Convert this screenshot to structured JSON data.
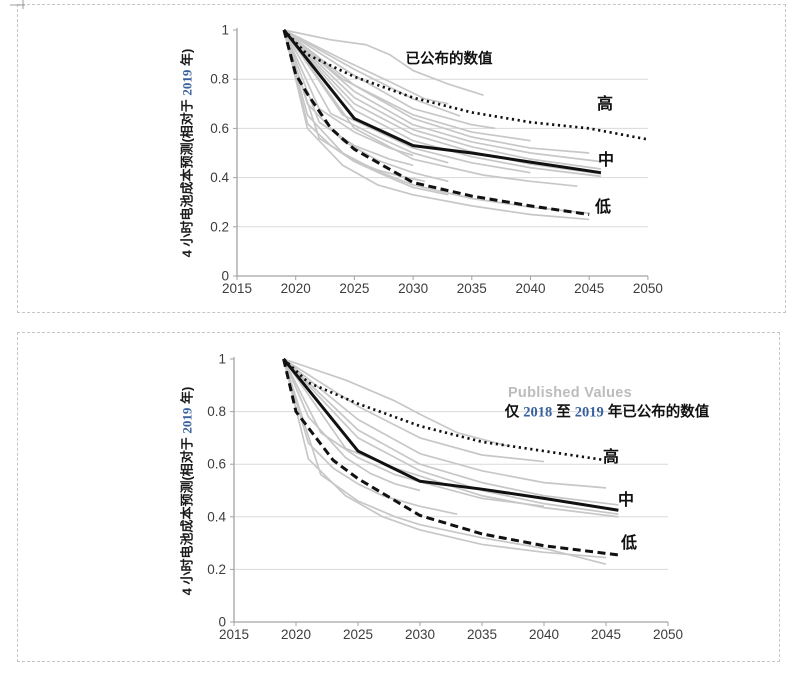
{
  "page": {
    "background": "#ffffff",
    "cell_border_color": "#c6c6c6"
  },
  "colors": {
    "main_line": "#111111",
    "background_lines": "#c7c7c7",
    "gridline": "#dadada",
    "axis": "#a3a3a3",
    "tick_text": "#3d3d3d",
    "annotation_text": "#111111",
    "watermark_text": "#bcbcbc",
    "accent_year_digits": "#38619e"
  },
  "labels": {
    "y_axis": {
      "pre": "4 小时电池成本预测(相对于 ",
      "year": "2019",
      "post": " 年)",
      "full": "4 小时电池成本预测(相对于 2019 年)"
    },
    "annotation2": {
      "p1": "仅 ",
      "year1": "2018",
      "p2": " 至 ",
      "year2": "2019",
      "p3": " 年已公布的数值"
    }
  },
  "chart_data": [
    {
      "type": "line",
      "annotation": "已公布的数值",
      "ylabel": "4 小时电池成本预测(相对于 2019 年)",
      "xlabel": "",
      "xlim": [
        2015,
        2050
      ],
      "ylim": [
        0,
        1
      ],
      "x_ticks": [
        2015,
        2020,
        2025,
        2030,
        2035,
        2040,
        2045,
        2050
      ],
      "y_ticks": [
        0,
        0.2,
        0.4,
        0.6,
        0.8,
        1
      ],
      "y_tick_labels": [
        "0",
        "0.2",
        "0.4",
        "0.6",
        "0.8",
        "1"
      ],
      "grid": "horizontal",
      "legend_position": "inline-right",
      "series": [
        {
          "name": "高",
          "style": "dotted",
          "points": [
            [
              2019,
              1
            ],
            [
              2021,
              0.9
            ],
            [
              2025,
              0.81
            ],
            [
              2030,
              0.725
            ],
            [
              2035,
              0.665
            ],
            [
              2040,
              0.625
            ],
            [
              2045,
              0.6
            ],
            [
              2050,
              0.555
            ]
          ]
        },
        {
          "name": "中",
          "style": "solid",
          "points": [
            [
              2019,
              1
            ],
            [
              2025,
              0.64
            ],
            [
              2030,
              0.53
            ],
            [
              2035,
              0.5
            ],
            [
              2040,
              0.463
            ],
            [
              2046,
              0.42
            ]
          ]
        },
        {
          "name": "低",
          "style": "dashed",
          "points": [
            [
              2019,
              1
            ],
            [
              2020,
              0.82
            ],
            [
              2021,
              0.74
            ],
            [
              2023,
              0.6
            ],
            [
              2025,
              0.515
            ],
            [
              2030,
              0.38
            ],
            [
              2035,
              0.325
            ],
            [
              2040,
              0.285
            ],
            [
              2045,
              0.25
            ]
          ]
        }
      ],
      "background_series": {
        "description": "individual published cost projections (gray)",
        "lines": [
          [
            [
              2019,
              1
            ],
            [
              2023,
              0.96
            ],
            [
              2026,
              0.94
            ],
            [
              2028,
              0.9
            ],
            [
              2030,
              0.835
            ],
            [
              2033,
              0.78
            ],
            [
              2036,
              0.735
            ]
          ],
          [
            [
              2019,
              1
            ],
            [
              2024,
              0.88
            ],
            [
              2028,
              0.79
            ],
            [
              2031,
              0.72
            ],
            [
              2033,
              0.7
            ]
          ],
          [
            [
              2019,
              1
            ],
            [
              2025,
              0.84
            ],
            [
              2030,
              0.72
            ],
            [
              2034,
              0.65
            ]
          ],
          [
            [
              2019,
              1
            ],
            [
              2025,
              0.815
            ],
            [
              2030,
              0.68
            ],
            [
              2035,
              0.615
            ],
            [
              2037,
              0.6
            ]
          ],
          [
            [
              2019,
              1
            ],
            [
              2024,
              0.8
            ],
            [
              2030,
              0.655
            ],
            [
              2035,
              0.585
            ],
            [
              2040,
              0.55
            ]
          ],
          [
            [
              2019,
              1
            ],
            [
              2025,
              0.775
            ],
            [
              2030,
              0.64
            ],
            [
              2035,
              0.565
            ],
            [
              2040,
              0.52
            ],
            [
              2045,
              0.5
            ]
          ],
          [
            [
              2019,
              1
            ],
            [
              2025,
              0.75
            ],
            [
              2030,
              0.615
            ],
            [
              2035,
              0.545
            ],
            [
              2040,
              0.5
            ],
            [
              2046,
              0.465
            ]
          ],
          [
            [
              2019,
              1
            ],
            [
              2025,
              0.725
            ],
            [
              2030,
              0.595
            ],
            [
              2035,
              0.525
            ],
            [
              2040,
              0.475
            ],
            [
              2046,
              0.435
            ]
          ],
          [
            [
              2019,
              1
            ],
            [
              2025,
              0.7
            ],
            [
              2030,
              0.575
            ],
            [
              2035,
              0.505
            ],
            [
              2040,
              0.455
            ],
            [
              2046,
              0.415
            ]
          ],
          [
            [
              2019,
              1
            ],
            [
              2025,
              0.675
            ],
            [
              2030,
              0.55
            ],
            [
              2035,
              0.485
            ],
            [
              2040,
              0.44
            ],
            [
              2046,
              0.405
            ]
          ],
          [
            [
              2019,
              1
            ],
            [
              2024,
              0.655
            ],
            [
              2030,
              0.52
            ],
            [
              2035,
              0.46
            ],
            [
              2040,
              0.42
            ]
          ],
          [
            [
              2019,
              1
            ],
            [
              2023,
              0.66
            ],
            [
              2027,
              0.565
            ],
            [
              2030,
              0.5
            ],
            [
              2033,
              0.46
            ]
          ],
          [
            [
              2019,
              1
            ],
            [
              2022,
              0.68
            ],
            [
              2025,
              0.585
            ],
            [
              2028,
              0.52
            ],
            [
              2030,
              0.49
            ]
          ],
          [
            [
              2019,
              1
            ],
            [
              2022,
              0.625
            ],
            [
              2025,
              0.53
            ],
            [
              2028,
              0.475
            ],
            [
              2030,
              0.45
            ]
          ],
          [
            [
              2019,
              1
            ],
            [
              2021,
              0.7
            ],
            [
              2024,
              0.55
            ],
            [
              2027,
              0.47
            ],
            [
              2030,
              0.42
            ],
            [
              2033,
              0.385
            ]
          ],
          [
            [
              2019,
              1
            ],
            [
              2021,
              0.655
            ],
            [
              2024,
              0.5
            ],
            [
              2027,
              0.425
            ],
            [
              2030,
              0.37
            ],
            [
              2035,
              0.315
            ],
            [
              2040,
              0.28
            ],
            [
              2045,
              0.255
            ]
          ],
          [
            [
              2019,
              1
            ],
            [
              2021,
              0.62
            ],
            [
              2023,
              0.53
            ],
            [
              2025,
              0.465
            ],
            [
              2028,
              0.4
            ],
            [
              2030,
              0.36
            ],
            [
              2033,
              0.33
            ]
          ],
          [
            [
              2019,
              1
            ],
            [
              2025,
              0.6
            ],
            [
              2030,
              0.475
            ],
            [
              2036,
              0.41
            ],
            [
              2040,
              0.385
            ],
            [
              2044,
              0.365
            ]
          ],
          [
            [
              2019,
              1
            ],
            [
              2022,
              0.56
            ],
            [
              2025,
              0.47
            ],
            [
              2027,
              0.43
            ],
            [
              2029,
              0.405
            ],
            [
              2031,
              0.385
            ]
          ],
          [
            [
              2019,
              1
            ],
            [
              2021,
              0.6
            ],
            [
              2024,
              0.45
            ],
            [
              2027,
              0.37
            ],
            [
              2030,
              0.33
            ],
            [
              2035,
              0.285
            ],
            [
              2040,
              0.25
            ],
            [
              2045,
              0.23
            ]
          ]
        ]
      }
    },
    {
      "type": "line",
      "annotation": "仅 2018 至 2019 年已公布的数值",
      "watermark": "Published Values",
      "ylabel": "4 小时电池成本预测(相对于 2019 年)",
      "xlabel": "",
      "xlim": [
        2015,
        2050
      ],
      "ylim": [
        0,
        1
      ],
      "x_ticks": [
        2015,
        2020,
        2025,
        2030,
        2035,
        2040,
        2045,
        2050
      ],
      "y_ticks": [
        0,
        0.2,
        0.4,
        0.6,
        0.8,
        1
      ],
      "y_tick_labels": [
        "0",
        "0.2",
        "0.4",
        "0.6",
        "0.8",
        "1"
      ],
      "grid": "horizontal",
      "legend_position": "inline-right",
      "series": [
        {
          "name": "高",
          "style": "dotted",
          "points": [
            [
              2019,
              1
            ],
            [
              2021,
              0.91
            ],
            [
              2025,
              0.83
            ],
            [
              2030,
              0.745
            ],
            [
              2035,
              0.685
            ],
            [
              2040,
              0.65
            ],
            [
              2045,
              0.615
            ]
          ]
        },
        {
          "name": "中",
          "style": "solid",
          "points": [
            [
              2019,
              1
            ],
            [
              2025,
              0.65
            ],
            [
              2030,
              0.535
            ],
            [
              2035,
              0.505
            ],
            [
              2040,
              0.47
            ],
            [
              2046,
              0.425
            ]
          ]
        },
        {
          "name": "低",
          "style": "dashed",
          "points": [
            [
              2019,
              1
            ],
            [
              2020,
              0.8
            ],
            [
              2023,
              0.615
            ],
            [
              2025,
              0.545
            ],
            [
              2030,
              0.405
            ],
            [
              2035,
              0.335
            ],
            [
              2040,
              0.29
            ],
            [
              2046,
              0.255
            ]
          ]
        }
      ],
      "background_series": {
        "description": "projections published 2018-2019 only (gray)",
        "lines": [
          [
            [
              2019,
              1
            ],
            [
              2024,
              0.92
            ],
            [
              2028,
              0.84
            ],
            [
              2030,
              0.79
            ],
            [
              2033,
              0.72
            ],
            [
              2037,
              0.67
            ]
          ],
          [
            [
              2019,
              1
            ],
            [
              2025,
              0.82
            ],
            [
              2030,
              0.7
            ],
            [
              2035,
              0.635
            ],
            [
              2040,
              0.61
            ]
          ],
          [
            [
              2019,
              1
            ],
            [
              2025,
              0.77
            ],
            [
              2030,
              0.64
            ],
            [
              2035,
              0.575
            ],
            [
              2040,
              0.53
            ],
            [
              2045,
              0.51
            ]
          ],
          [
            [
              2019,
              1
            ],
            [
              2025,
              0.73
            ],
            [
              2030,
              0.6
            ],
            [
              2035,
              0.53
            ],
            [
              2040,
              0.48
            ],
            [
              2046,
              0.445
            ]
          ],
          [
            [
              2019,
              1
            ],
            [
              2025,
              0.7
            ],
            [
              2030,
              0.575
            ],
            [
              2035,
              0.5
            ],
            [
              2040,
              0.45
            ],
            [
              2046,
              0.41
            ]
          ],
          [
            [
              2019,
              1
            ],
            [
              2024,
              0.66
            ],
            [
              2028,
              0.585
            ],
            [
              2030,
              0.555
            ],
            [
              2035,
              0.48
            ],
            [
              2040,
              0.435
            ],
            [
              2046,
              0.4
            ]
          ],
          [
            [
              2019,
              1
            ],
            [
              2022,
              0.72
            ],
            [
              2025,
              0.625
            ],
            [
              2028,
              0.56
            ],
            [
              2031,
              0.52
            ],
            [
              2035,
              0.47
            ],
            [
              2040,
              0.44
            ]
          ],
          [
            [
              2019,
              1
            ],
            [
              2021,
              0.78
            ],
            [
              2024,
              0.625
            ],
            [
              2026,
              0.565
            ],
            [
              2028,
              0.525
            ],
            [
              2030,
              0.5
            ]
          ],
          [
            [
              2019,
              1
            ],
            [
              2021,
              0.68
            ],
            [
              2023,
              0.585
            ],
            [
              2025,
              0.525
            ],
            [
              2027,
              0.48
            ],
            [
              2030,
              0.44
            ],
            [
              2033,
              0.41
            ]
          ],
          [
            [
              2019,
              1
            ],
            [
              2021,
              0.62
            ],
            [
              2024,
              0.48
            ],
            [
              2027,
              0.4
            ],
            [
              2030,
              0.35
            ],
            [
              2035,
              0.295
            ],
            [
              2040,
              0.265
            ],
            [
              2045,
              0.245
            ]
          ],
          [
            [
              2019,
              1
            ],
            [
              2022,
              0.56
            ],
            [
              2025,
              0.46
            ],
            [
              2028,
              0.4
            ],
            [
              2030,
              0.37
            ],
            [
              2035,
              0.32
            ],
            [
              2040,
              0.28
            ],
            [
              2045,
              0.22
            ]
          ]
        ]
      }
    }
  ]
}
